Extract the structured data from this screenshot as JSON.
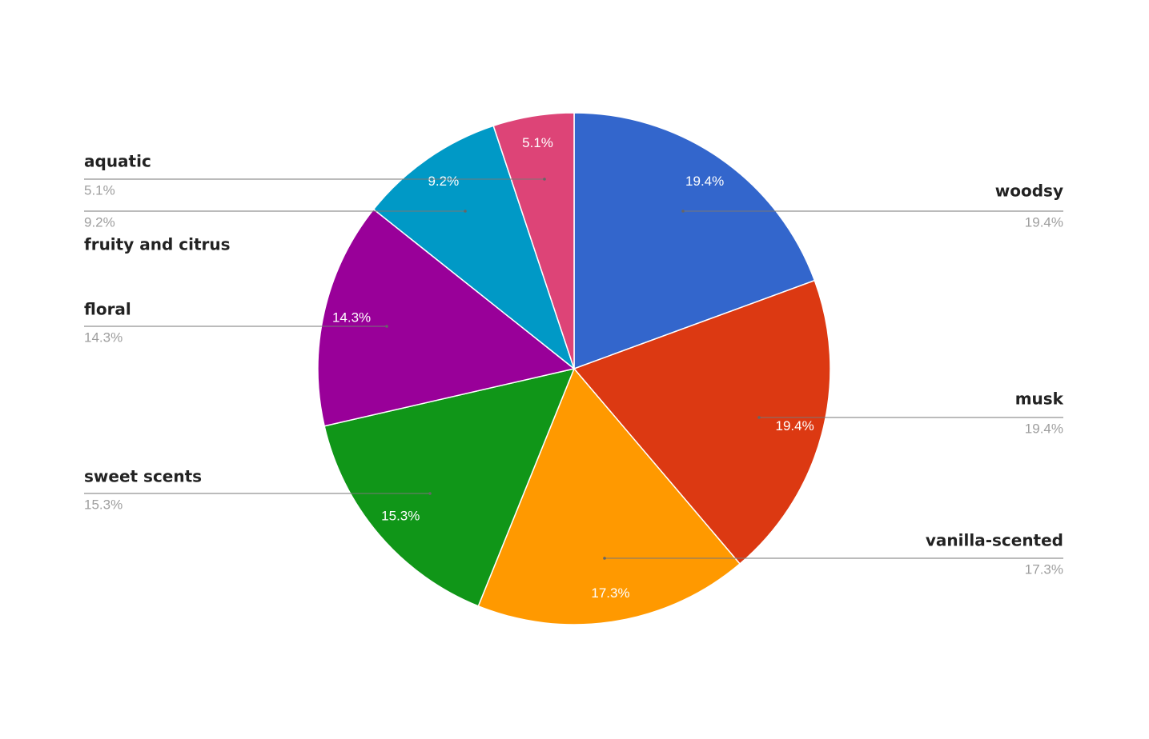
{
  "chart_data": {
    "type": "pie",
    "categories": [
      "woodsy",
      "musk",
      "vanilla-scented",
      "sweet scents",
      "floral",
      "fruity and citrus",
      "aquatic"
    ],
    "values": [
      19.4,
      19.4,
      17.3,
      15.3,
      14.3,
      9.2,
      5.1
    ],
    "value_labels": [
      "19.4%",
      "19.4%",
      "17.3%",
      "15.3%",
      "14.3%",
      "9.2%",
      "5.1%"
    ],
    "colors": [
      "#3366cc",
      "#dc3912",
      "#ff9900",
      "#109618",
      "#990099",
      "#0099c6",
      "#dd4477"
    ]
  }
}
